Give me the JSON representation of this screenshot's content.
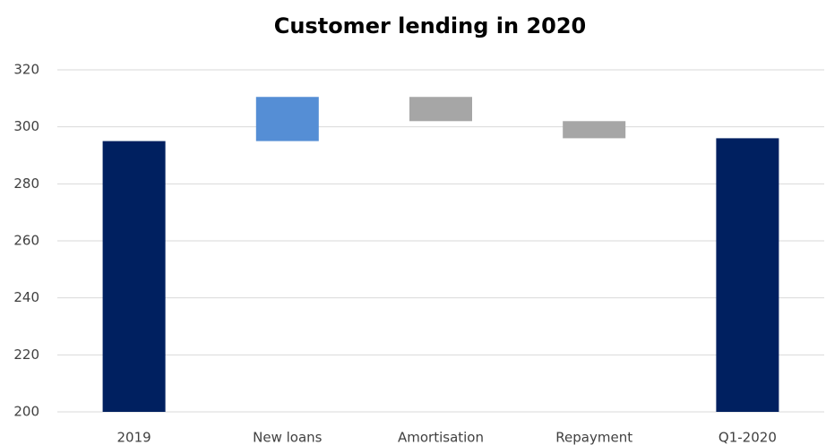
{
  "chart_data": {
    "type": "waterfall",
    "title": "Customer lending in 2020",
    "categories": [
      "2019",
      "New loans",
      "Amortisation",
      "Repayment",
      "Q1-2020"
    ],
    "values": [
      295,
      15.5,
      -8.5,
      -6,
      296
    ],
    "totals": [
      true,
      false,
      false,
      false,
      true
    ],
    "colors": {
      "total": "#002060",
      "increase": "#558ed5",
      "decrease": "#a6a6a6"
    },
    "ylim": [
      200,
      320
    ],
    "yticks": [
      200,
      220,
      240,
      260,
      280,
      300,
      320
    ],
    "grid": true
  }
}
